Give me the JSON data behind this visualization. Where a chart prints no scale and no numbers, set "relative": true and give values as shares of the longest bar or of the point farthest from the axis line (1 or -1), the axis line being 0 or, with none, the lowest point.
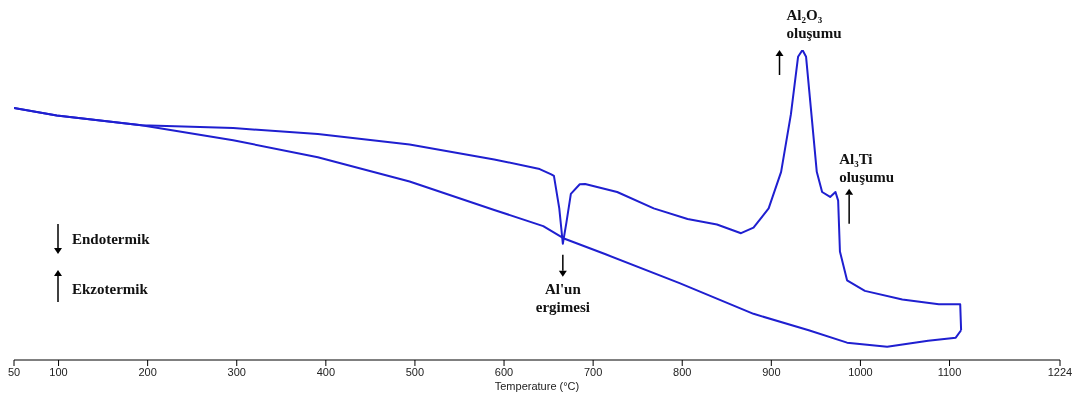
{
  "chart_data": {
    "type": "line",
    "relative": true,
    "xlabel": "Temperature (°C)",
    "xlim": [
      50,
      1224
    ],
    "xticks": [
      50,
      100,
      200,
      300,
      400,
      500,
      600,
      700,
      800,
      900,
      1000,
      1100,
      1224
    ],
    "grid": false,
    "legend": false,
    "marker": "none",
    "line_style": "solid",
    "series": [
      {
        "color": "#1f1fd0",
        "x": [
          50,
          98,
          193,
          296,
          391,
          494,
          589,
          640,
          653,
          656,
          662,
          666,
          670,
          675,
          685,
          691,
          727,
          768,
          806,
          839,
          866,
          880,
          897,
          911,
          922,
          930,
          935,
          939,
          945,
          951,
          957,
          966,
          972,
          975,
          977,
          985,
          1005,
          1047,
          1088,
          1112,
          1113
        ],
        "values": [
          0.813,
          0.789,
          0.757,
          0.748,
          0.729,
          0.695,
          0.647,
          0.616,
          0.599,
          0.594,
          0.489,
          0.375,
          0.443,
          0.536,
          0.567,
          0.568,
          0.542,
          0.489,
          0.455,
          0.437,
          0.409,
          0.427,
          0.489,
          0.607,
          0.793,
          0.978,
          1,
          0.978,
          0.793,
          0.607,
          0.542,
          0.526,
          0.542,
          0.514,
          0.35,
          0.257,
          0.223,
          0.195,
          0.18,
          0.18,
          0.096
        ]
      },
      {
        "color": "#1f1fd0",
        "x": [
          50,
          98,
          193,
          296,
          391,
          494,
          589,
          644,
          668,
          714,
          797,
          880,
          942,
          985,
          1030,
          1076,
          1107,
          1113
        ],
        "values": [
          0.813,
          0.789,
          0.757,
          0.709,
          0.654,
          0.576,
          0.484,
          0.432,
          0.391,
          0.341,
          0.248,
          0.149,
          0.096,
          0.056,
          0.043,
          0.062,
          0.072,
          0.096
        ]
      }
    ],
    "annotations": [
      {
        "text": "Al₂O₃ oluşumu",
        "x": 935,
        "y": 1
      },
      {
        "text": "Al₃Ti oluşumu",
        "x": 975,
        "y": 0.514
      },
      {
        "text": "Al'un ergimesi",
        "x": 666,
        "y": 0.375
      },
      "Endotermik",
      "Ekzotermik"
    ]
  }
}
